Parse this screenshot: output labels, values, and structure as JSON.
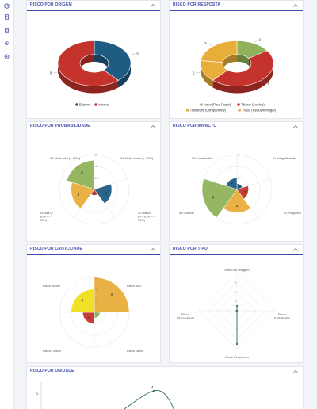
{
  "sidebar": {
    "icons": [
      "gauge-icon",
      "building-icon",
      "document-icon",
      "gear-icon",
      "settings-icon"
    ]
  },
  "colors": {
    "blue": "#1f5c84",
    "red": "#c4342d",
    "green": "#8fb25a",
    "orange": "#e9ad3a",
    "yellow": "#f0de1c",
    "brand": "#3f4aa8"
  },
  "panels": {
    "origem": {
      "title": "RISCO POR ORIGEM"
    },
    "resposta": {
      "title": "RISCO POR RESPOSTA"
    },
    "probabilidade": {
      "title": "RISCO POR PROBABILIDADE"
    },
    "impacto": {
      "title": "RISCO POR IMPACTO"
    },
    "criticidade": {
      "title": "RISCO POR CRITICIDADE"
    },
    "tipo": {
      "title": "RISCO POR TIPO"
    },
    "unidade": {
      "title": "RISCO POR UNIDADE"
    }
  },
  "chart_data": [
    {
      "id": "origem",
      "type": "pie",
      "categories": [
        "Externo",
        "Interno"
      ],
      "values": [
        5,
        8
      ],
      "legend": "bottom"
    },
    {
      "id": "resposta",
      "type": "pie",
      "categories": [
        "Novo (Para Fazer)",
        "Tolerar (Aceitar)",
        "Transferir (Compartilhar)",
        "Tratar (Reduzir/Mitigar)"
      ],
      "values": [
        2,
        6,
        2,
        3
      ],
      "legend": "bottom"
    },
    {
      "id": "probabilidade",
      "type": "polar-area",
      "categories": [
        "05 Muito alta (> 90%)",
        "01 Muito baixa (< 10%)",
        "02 Baixa (>= 10% <= 30%)",
        "03 Média (> 30% <= 50%)",
        "04 Alta (> 50% <= 90%)"
      ],
      "values": [
        0,
        3,
        1,
        4,
        5
      ],
      "axis_ticks": [
        "0",
        "2",
        "4",
        "6"
      ]
    },
    {
      "id": "impacto",
      "type": "polar-area",
      "categories": [
        "01 Insignificante",
        "02 Pequeno",
        "03 Moderado",
        "04 Grande",
        "05 Catastrófico"
      ],
      "values": [
        1,
        2,
        4,
        6,
        2
      ],
      "axis_ticks": [
        "0",
        "2",
        "4",
        "6"
      ]
    },
    {
      "id": "criticidade",
      "type": "polar-area",
      "categories": [
        "Risco Alto",
        "Risco Baixo",
        "Risco Crítico",
        "Risco Médio"
      ],
      "values": [
        6,
        1,
        2,
        4
      ],
      "axis_ticks": [
        "0",
        "2",
        "4",
        "6"
      ]
    },
    {
      "id": "tipo",
      "type": "radar",
      "categories": [
        "Risco de Imagem",
        "Risco Estratégico",
        "Risco Financeiro",
        "Risco Operacional"
      ],
      "values": [
        1,
        0,
        7,
        0
      ],
      "axis_ticks": [
        "0",
        "2",
        "4",
        "6"
      ]
    },
    {
      "id": "unidade",
      "type": "line",
      "y_ticks": [
        "3"
      ],
      "value_labels": [
        "4"
      ]
    }
  ]
}
